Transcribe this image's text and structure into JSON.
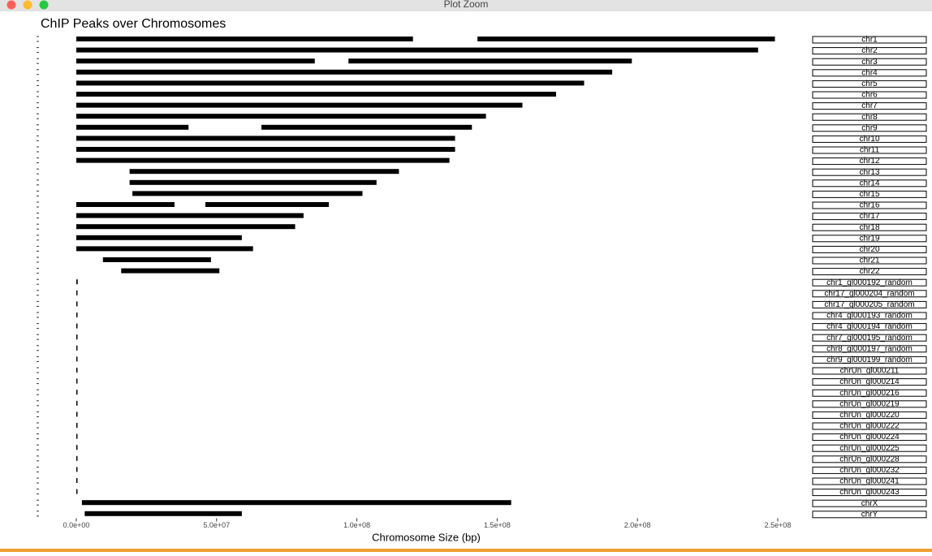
{
  "window": {
    "title": "Plot Zoom"
  },
  "chart_data": {
    "type": "segment",
    "title": "ChIP Peaks over Chromosomes",
    "x_label": "Chromosome Size (bp)",
    "xlim": [
      -13300000,
      261000000
    ],
    "xticks": [
      {
        "value": 0,
        "label": "0.0e+00"
      },
      {
        "value": 50000000,
        "label": "5.0e+07"
      },
      {
        "value": 100000000,
        "label": "1.0e+08"
      },
      {
        "value": 150000000,
        "label": "1.5e+08"
      },
      {
        "value": 200000000,
        "label": "2.0e+08"
      },
      {
        "value": 250000000,
        "label": "2.5e+08"
      }
    ],
    "color": "#000000",
    "panels": [
      {
        "name": "chr1",
        "regions": [
          [
            0,
            120000000
          ],
          [
            143000000,
            249000000
          ]
        ]
      },
      {
        "name": "chr2",
        "regions": [
          [
            0,
            243000000
          ]
        ]
      },
      {
        "name": "chr3",
        "regions": [
          [
            0,
            85000000
          ],
          [
            97000000,
            198000000
          ]
        ]
      },
      {
        "name": "chr4",
        "regions": [
          [
            0,
            191000000
          ]
        ]
      },
      {
        "name": "chr5",
        "regions": [
          [
            0,
            181000000
          ]
        ]
      },
      {
        "name": "chr6",
        "regions": [
          [
            0,
            171000000
          ]
        ]
      },
      {
        "name": "chr7",
        "regions": [
          [
            0,
            159000000
          ]
        ]
      },
      {
        "name": "chr8",
        "regions": [
          [
            0,
            146000000
          ]
        ]
      },
      {
        "name": "chr9",
        "regions": [
          [
            0,
            40000000
          ],
          [
            66000000,
            141000000
          ]
        ]
      },
      {
        "name": "chr10",
        "regions": [
          [
            0,
            135000000
          ]
        ]
      },
      {
        "name": "chr11",
        "regions": [
          [
            0,
            135000000
          ]
        ]
      },
      {
        "name": "chr12",
        "regions": [
          [
            0,
            133000000
          ]
        ]
      },
      {
        "name": "chr13",
        "regions": [
          [
            19000000,
            115000000
          ]
        ]
      },
      {
        "name": "chr14",
        "regions": [
          [
            19000000,
            107000000
          ]
        ]
      },
      {
        "name": "chr15",
        "regions": [
          [
            20000000,
            102000000
          ]
        ]
      },
      {
        "name": "chr16",
        "regions": [
          [
            0,
            35000000
          ],
          [
            46000000,
            90000000
          ]
        ]
      },
      {
        "name": "chr17",
        "regions": [
          [
            0,
            81000000
          ]
        ]
      },
      {
        "name": "chr18",
        "regions": [
          [
            0,
            78000000
          ]
        ]
      },
      {
        "name": "chr19",
        "regions": [
          [
            0,
            59000000
          ]
        ]
      },
      {
        "name": "chr20",
        "regions": [
          [
            0,
            63000000
          ]
        ]
      },
      {
        "name": "chr21",
        "regions": [
          [
            9500000,
            48000000
          ]
        ]
      },
      {
        "name": "chr22",
        "regions": [
          [
            16000000,
            51000000
          ]
        ]
      },
      {
        "name": "chr1_gl000192_random",
        "regions": [
          [
            0,
            500000
          ]
        ]
      },
      {
        "name": "chr17_gl000204_random",
        "regions": [
          [
            0,
            80000
          ]
        ]
      },
      {
        "name": "chr17_gl000205_random",
        "regions": [
          [
            0,
            170000
          ]
        ]
      },
      {
        "name": "chr4_gl000193_random",
        "regions": [
          [
            0,
            190000
          ]
        ]
      },
      {
        "name": "chr4_gl000194_random",
        "regions": [
          [
            0,
            190000
          ]
        ]
      },
      {
        "name": "chr7_gl000195_random",
        "regions": [
          [
            0,
            180000
          ]
        ]
      },
      {
        "name": "chr8_gl000197_random",
        "regions": [
          [
            0,
            37000
          ]
        ]
      },
      {
        "name": "chr9_gl000199_random",
        "regions": [
          [
            0,
            170000
          ]
        ]
      },
      {
        "name": "chrUn_gl000211",
        "regions": [
          [
            0,
            160000
          ]
        ]
      },
      {
        "name": "chrUn_gl000214",
        "regions": [
          [
            0,
            130000
          ]
        ]
      },
      {
        "name": "chrUn_gl000216",
        "regions": [
          [
            0,
            170000
          ]
        ]
      },
      {
        "name": "chrUn_gl000219",
        "regions": [
          [
            0,
            180000
          ]
        ]
      },
      {
        "name": "chrUn_gl000220",
        "regions": [
          [
            0,
            160000
          ]
        ]
      },
      {
        "name": "chrUn_gl000222",
        "regions": [
          [
            0,
            180000
          ]
        ]
      },
      {
        "name": "chrUn_gl000224",
        "regions": [
          [
            0,
            170000
          ]
        ]
      },
      {
        "name": "chrUn_gl000225",
        "regions": [
          [
            0,
            210000
          ]
        ]
      },
      {
        "name": "chrUn_gl000228",
        "regions": [
          [
            0,
            120000
          ]
        ]
      },
      {
        "name": "chrUn_gl000232",
        "regions": [
          [
            0,
            40000
          ]
        ]
      },
      {
        "name": "chrUn_gl000241",
        "regions": [
          [
            0,
            40000
          ]
        ]
      },
      {
        "name": "chrUn_gl000243",
        "regions": [
          [
            0,
            40000
          ]
        ]
      },
      {
        "name": "chrX",
        "regions": [
          [
            2000000,
            155000000
          ]
        ]
      },
      {
        "name": "chrY",
        "regions": [
          [
            3000000,
            59000000
          ]
        ]
      }
    ]
  }
}
